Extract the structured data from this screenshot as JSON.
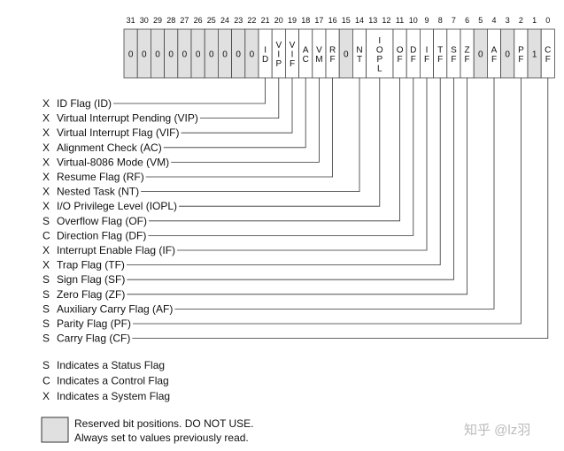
{
  "colors": {
    "reserved": "#e0e0e0",
    "line": "#333333",
    "watermark": "#bbbbbb"
  },
  "bits": [
    {
      "bit": 31,
      "text": [
        "0"
      ],
      "reserved": true
    },
    {
      "bit": 30,
      "text": [
        "0"
      ],
      "reserved": true
    },
    {
      "bit": 29,
      "text": [
        "0"
      ],
      "reserved": true
    },
    {
      "bit": 28,
      "text": [
        "0"
      ],
      "reserved": true
    },
    {
      "bit": 27,
      "text": [
        "0"
      ],
      "reserved": true
    },
    {
      "bit": 26,
      "text": [
        "0"
      ],
      "reserved": true
    },
    {
      "bit": 25,
      "text": [
        "0"
      ],
      "reserved": true
    },
    {
      "bit": 24,
      "text": [
        "0"
      ],
      "reserved": true
    },
    {
      "bit": 23,
      "text": [
        "0"
      ],
      "reserved": true
    },
    {
      "bit": 22,
      "text": [
        "0"
      ],
      "reserved": true
    },
    {
      "bit": 21,
      "text": [
        "I",
        "D"
      ]
    },
    {
      "bit": 20,
      "text": [
        "V",
        "I",
        "P"
      ]
    },
    {
      "bit": 19,
      "text": [
        "V",
        "I",
        "F"
      ]
    },
    {
      "bit": 18,
      "text": [
        "A",
        "C"
      ]
    },
    {
      "bit": 17,
      "text": [
        "V",
        "M"
      ]
    },
    {
      "bit": 16,
      "text": [
        "R",
        "F"
      ]
    },
    {
      "bit": 15,
      "text": [
        "0"
      ],
      "reserved": true
    },
    {
      "bit": 14,
      "text": [
        "N",
        "T"
      ]
    },
    {
      "bit": 13,
      "span": 2,
      "text": [
        "I",
        "O",
        "P",
        "L"
      ]
    },
    {
      "bit": 11,
      "text": [
        "O",
        "F"
      ]
    },
    {
      "bit": 10,
      "text": [
        "D",
        "F"
      ]
    },
    {
      "bit": 9,
      "text": [
        "I",
        "F"
      ]
    },
    {
      "bit": 8,
      "text": [
        "T",
        "F"
      ]
    },
    {
      "bit": 7,
      "text": [
        "S",
        "F"
      ]
    },
    {
      "bit": 6,
      "text": [
        "Z",
        "F"
      ]
    },
    {
      "bit": 5,
      "text": [
        "0"
      ],
      "reserved": true
    },
    {
      "bit": 4,
      "text": [
        "A",
        "F"
      ]
    },
    {
      "bit": 3,
      "text": [
        "0"
      ],
      "reserved": true
    },
    {
      "bit": 2,
      "text": [
        "P",
        "F"
      ]
    },
    {
      "bit": 1,
      "text": [
        "1"
      ],
      "reserved": true
    },
    {
      "bit": 0,
      "text": [
        "C",
        "F"
      ]
    }
  ],
  "flags": [
    {
      "type": "X",
      "label": "ID Flag (ID)",
      "bit": 21
    },
    {
      "type": "X",
      "label": "Virtual Interrupt Pending (VIP)",
      "bit": 20
    },
    {
      "type": "X",
      "label": "Virtual Interrupt Flag (VIF)",
      "bit": 19
    },
    {
      "type": "X",
      "label": "Alignment Check (AC)",
      "bit": 18
    },
    {
      "type": "X",
      "label": "Virtual-8086 Mode (VM)",
      "bit": 17
    },
    {
      "type": "X",
      "label": "Resume Flag (RF)",
      "bit": 16
    },
    {
      "type": "X",
      "label": "Nested Task (NT)",
      "bit": 14
    },
    {
      "type": "X",
      "label": "I/O Privilege Level (IOPL)",
      "bit": 12.5
    },
    {
      "type": "S",
      "label": "Overflow Flag (OF)",
      "bit": 11
    },
    {
      "type": "C",
      "label": "Direction Flag (DF)",
      "bit": 10
    },
    {
      "type": "X",
      "label": "Interrupt Enable Flag (IF)",
      "bit": 9
    },
    {
      "type": "X",
      "label": "Trap Flag (TF)",
      "bit": 8
    },
    {
      "type": "S",
      "label": "Sign Flag (SF)",
      "bit": 7
    },
    {
      "type": "S",
      "label": "Zero Flag (ZF)",
      "bit": 6
    },
    {
      "type": "S",
      "label": "Auxiliary Carry Flag (AF)",
      "bit": 4
    },
    {
      "type": "S",
      "label": "Parity Flag (PF)",
      "bit": 2
    },
    {
      "type": "S",
      "label": "Carry Flag (CF)",
      "bit": 0
    }
  ],
  "legend": [
    {
      "type": "S",
      "label": "Indicates a Status Flag"
    },
    {
      "type": "C",
      "label": "Indicates a Control Flag"
    },
    {
      "type": "X",
      "label": "Indicates a System Flag"
    }
  ],
  "reserved_note": [
    "Reserved bit positions. DO NOT USE.",
    "Always set to values previously read."
  ],
  "watermark": "知乎 @lz羽"
}
